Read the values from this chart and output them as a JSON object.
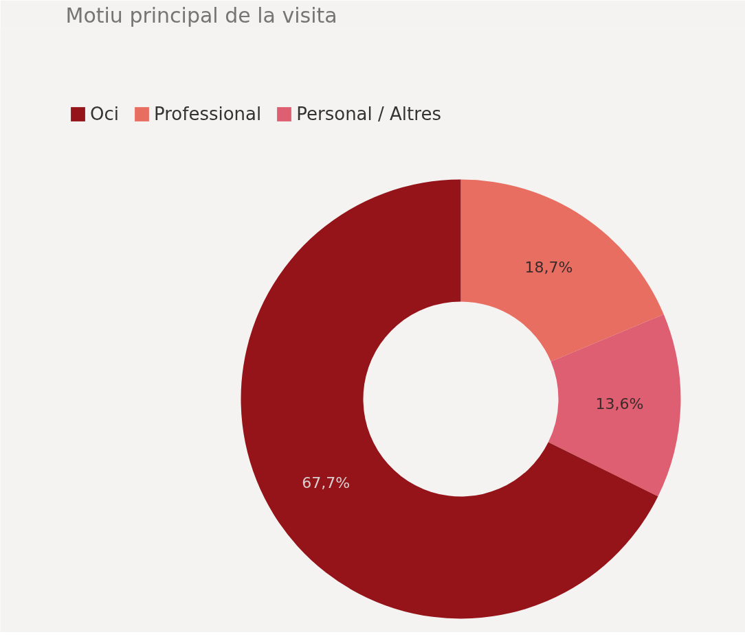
{
  "chart_data": {
    "type": "donut",
    "title": "Motiu principal de la visita",
    "categories": [
      "Oci",
      "Professional",
      "Personal / Altres"
    ],
    "values": [
      67.7,
      18.7,
      13.6
    ],
    "colors": [
      "#95141a",
      "#e86e62",
      "#df5f72"
    ],
    "value_labels": [
      "67,7%",
      "18,7%",
      "13,6%"
    ],
    "legend": "top left"
  }
}
